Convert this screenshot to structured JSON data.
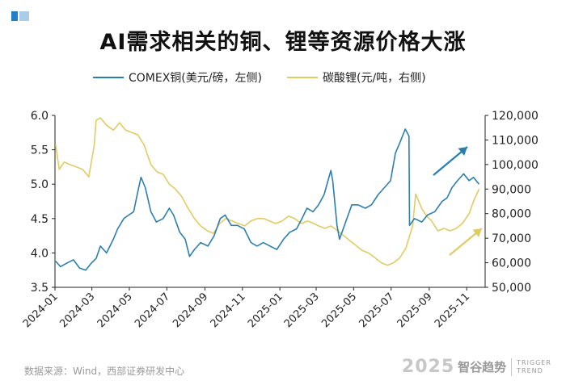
{
  "chart_data": {
    "type": "line",
    "title": "AI需求相关的铜、锂等资源价格大涨",
    "x_ticks": [
      "2024-01",
      "2024-03",
      "2024-05",
      "2024-07",
      "2024-09",
      "2024-11",
      "2025-01",
      "2025-03",
      "2025-05",
      "2025-07",
      "2025-09",
      "2025-11"
    ],
    "y_left_ticks": [
      "3.5",
      "4.0",
      "4.5",
      "5.0",
      "5.5",
      "6.0"
    ],
    "y_right_ticks": [
      "50,000",
      "60,000",
      "70,000",
      "80,000",
      "90,000",
      "100,000",
      "110,000",
      "120,000"
    ],
    "ylim_left": [
      3.5,
      6.0
    ],
    "ylim_right": [
      50000,
      120000
    ],
    "legend_position": "top",
    "grid": false,
    "series": [
      {
        "name": "COMEX铜(美元/磅，左侧)",
        "axis": "left",
        "color": "#2b7fb0",
        "points": [
          [
            "2024-01-02",
            3.88
          ],
          [
            "2024-01-10",
            3.8
          ],
          [
            "2024-01-20",
            3.85
          ],
          [
            "2024-01-31",
            3.9
          ],
          [
            "2024-02-10",
            3.78
          ],
          [
            "2024-02-20",
            3.75
          ],
          [
            "2024-02-29",
            3.85
          ],
          [
            "2024-03-08",
            3.92
          ],
          [
            "2024-03-15",
            4.1
          ],
          [
            "2024-03-25",
            4.0
          ],
          [
            "2024-04-05",
            4.2
          ],
          [
            "2024-04-12",
            4.35
          ],
          [
            "2024-04-22",
            4.5
          ],
          [
            "2024-04-30",
            4.55
          ],
          [
            "2024-05-08",
            4.6
          ],
          [
            "2024-05-15",
            4.9
          ],
          [
            "2024-05-20",
            5.1
          ],
          [
            "2024-05-27",
            4.95
          ],
          [
            "2024-06-05",
            4.6
          ],
          [
            "2024-06-14",
            4.45
          ],
          [
            "2024-06-25",
            4.5
          ],
          [
            "2024-07-05",
            4.65
          ],
          [
            "2024-07-12",
            4.55
          ],
          [
            "2024-07-22",
            4.3
          ],
          [
            "2024-07-31",
            4.2
          ],
          [
            "2024-08-07",
            3.95
          ],
          [
            "2024-08-15",
            4.05
          ],
          [
            "2024-08-25",
            4.15
          ],
          [
            "2024-09-06",
            4.1
          ],
          [
            "2024-09-16",
            4.25
          ],
          [
            "2024-09-26",
            4.5
          ],
          [
            "2024-10-04",
            4.55
          ],
          [
            "2024-10-14",
            4.4
          ],
          [
            "2024-10-24",
            4.4
          ],
          [
            "2024-11-04",
            4.35
          ],
          [
            "2024-11-15",
            4.15
          ],
          [
            "2024-11-25",
            4.1
          ],
          [
            "2024-12-05",
            4.15
          ],
          [
            "2024-12-16",
            4.1
          ],
          [
            "2024-12-27",
            4.05
          ],
          [
            "2025-01-07",
            4.2
          ],
          [
            "2025-01-17",
            4.3
          ],
          [
            "2025-01-28",
            4.35
          ],
          [
            "2025-02-06",
            4.5
          ],
          [
            "2025-02-14",
            4.65
          ],
          [
            "2025-02-24",
            4.6
          ],
          [
            "2025-03-05",
            4.7
          ],
          [
            "2025-03-14",
            4.85
          ],
          [
            "2025-03-25",
            5.2
          ],
          [
            "2025-03-28",
            5.05
          ],
          [
            "2025-04-04",
            4.4
          ],
          [
            "2025-04-08",
            4.2
          ],
          [
            "2025-04-16",
            4.4
          ],
          [
            "2025-04-28",
            4.7
          ],
          [
            "2025-05-08",
            4.7
          ],
          [
            "2025-05-20",
            4.65
          ],
          [
            "2025-05-30",
            4.7
          ],
          [
            "2025-06-10",
            4.85
          ],
          [
            "2025-06-20",
            4.95
          ],
          [
            "2025-06-30",
            5.05
          ],
          [
            "2025-07-08",
            5.45
          ],
          [
            "2025-07-15",
            5.6
          ],
          [
            "2025-07-24",
            5.8
          ],
          [
            "2025-07-30",
            5.7
          ],
          [
            "2025-07-31",
            4.4
          ],
          [
            "2025-08-08",
            4.5
          ],
          [
            "2025-08-20",
            4.45
          ],
          [
            "2025-08-29",
            4.55
          ],
          [
            "2025-09-10",
            4.6
          ],
          [
            "2025-09-22",
            4.75
          ],
          [
            "2025-09-30",
            4.8
          ],
          [
            "2025-10-08",
            4.95
          ],
          [
            "2025-10-17",
            5.05
          ],
          [
            "2025-10-27",
            5.15
          ],
          [
            "2025-11-05",
            5.05
          ],
          [
            "2025-11-12",
            5.1
          ],
          [
            "2025-11-21",
            5.0
          ]
        ]
      },
      {
        "name": "碳酸锂(元/吨，右侧)",
        "axis": "right",
        "color": "#e2cb62",
        "points": [
          [
            "2024-01-02",
            108000
          ],
          [
            "2024-01-08",
            98000
          ],
          [
            "2024-01-16",
            101000
          ],
          [
            "2024-01-25",
            100000
          ],
          [
            "2024-02-05",
            99000
          ],
          [
            "2024-02-15",
            98000
          ],
          [
            "2024-02-25",
            95000
          ],
          [
            "2024-03-05",
            108000
          ],
          [
            "2024-03-08",
            118000
          ],
          [
            "2024-03-15",
            119000
          ],
          [
            "2024-03-25",
            116000
          ],
          [
            "2024-04-05",
            114000
          ],
          [
            "2024-04-15",
            117000
          ],
          [
            "2024-04-25",
            114000
          ],
          [
            "2024-05-05",
            113000
          ],
          [
            "2024-05-15",
            112000
          ],
          [
            "2024-05-25",
            108000
          ],
          [
            "2024-06-05",
            100000
          ],
          [
            "2024-06-15",
            97000
          ],
          [
            "2024-06-25",
            96000
          ],
          [
            "2024-07-05",
            92000
          ],
          [
            "2024-07-15",
            90000
          ],
          [
            "2024-07-25",
            87000
          ],
          [
            "2024-08-05",
            82000
          ],
          [
            "2024-08-15",
            78000
          ],
          [
            "2024-08-25",
            75000
          ],
          [
            "2024-09-05",
            73000
          ],
          [
            "2024-09-15",
            72000
          ],
          [
            "2024-09-25",
            76000
          ],
          [
            "2024-10-05",
            78000
          ],
          [
            "2024-10-15",
            77000
          ],
          [
            "2024-10-25",
            76000
          ],
          [
            "2024-11-05",
            75000
          ],
          [
            "2024-11-15",
            77000
          ],
          [
            "2024-11-25",
            78000
          ],
          [
            "2024-12-05",
            78000
          ],
          [
            "2024-12-15",
            77000
          ],
          [
            "2024-12-25",
            76000
          ],
          [
            "2025-01-05",
            77000
          ],
          [
            "2025-01-15",
            79000
          ],
          [
            "2025-01-25",
            78000
          ],
          [
            "2025-02-05",
            76000
          ],
          [
            "2025-02-15",
            77000
          ],
          [
            "2025-02-25",
            76000
          ],
          [
            "2025-03-05",
            75000
          ],
          [
            "2025-03-15",
            74000
          ],
          [
            "2025-03-25",
            75000
          ],
          [
            "2025-04-05",
            73000
          ],
          [
            "2025-04-15",
            71000
          ],
          [
            "2025-04-25",
            69000
          ],
          [
            "2025-05-05",
            67000
          ],
          [
            "2025-05-15",
            65000
          ],
          [
            "2025-05-25",
            64000
          ],
          [
            "2025-06-05",
            62000
          ],
          [
            "2025-06-15",
            60000
          ],
          [
            "2025-06-25",
            59000
          ],
          [
            "2025-07-05",
            60000
          ],
          [
            "2025-07-15",
            62000
          ],
          [
            "2025-07-25",
            66000
          ],
          [
            "2025-08-05",
            75000
          ],
          [
            "2025-08-10",
            88000
          ],
          [
            "2025-08-20",
            82000
          ],
          [
            "2025-08-28",
            79000
          ],
          [
            "2025-09-05",
            77000
          ],
          [
            "2025-09-15",
            73000
          ],
          [
            "2025-09-25",
            74000
          ],
          [
            "2025-10-05",
            73000
          ],
          [
            "2025-10-15",
            74000
          ],
          [
            "2025-10-25",
            76000
          ],
          [
            "2025-11-05",
            80000
          ],
          [
            "2025-11-12",
            85000
          ],
          [
            "2025-11-21",
            90000
          ]
        ]
      }
    ]
  },
  "footer": {
    "source": "数据来源：Wind，西部证券研发中心",
    "brand_year": "2025",
    "brand_name": "智谷趋势",
    "brand_en_1": "TRIGGER",
    "brand_en_2": "TREND"
  }
}
